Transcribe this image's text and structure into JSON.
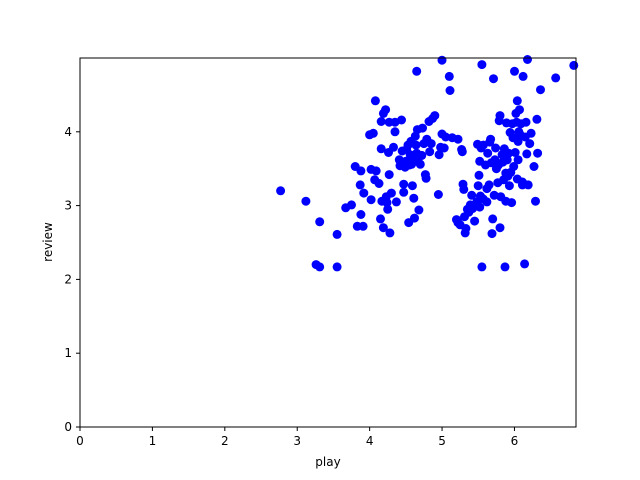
{
  "chart_data": {
    "type": "scatter",
    "title": "",
    "xlabel": "play",
    "ylabel": "review",
    "xlim": [
      0,
      6.85
    ],
    "ylim": [
      0,
      5.0
    ],
    "x_ticks": [
      0,
      1,
      2,
      3,
      4,
      5,
      6
    ],
    "y_ticks": [
      0,
      1,
      2,
      3,
      4
    ],
    "grid": false,
    "marker_color": "#0000ff",
    "points": [
      [
        2.77,
        3.2
      ],
      [
        3.12,
        3.06
      ],
      [
        3.26,
        2.2
      ],
      [
        3.31,
        2.17
      ],
      [
        3.31,
        2.78
      ],
      [
        3.55,
        2.61
      ],
      [
        3.55,
        2.17
      ],
      [
        3.67,
        2.97
      ],
      [
        3.75,
        3.01
      ],
      [
        3.8,
        3.53
      ],
      [
        3.83,
        2.72
      ],
      [
        3.87,
        3.28
      ],
      [
        3.88,
        3.47
      ],
      [
        3.88,
        2.88
      ],
      [
        3.91,
        2.72
      ],
      [
        3.92,
        3.17
      ],
      [
        4.0,
        3.96
      ],
      [
        4.02,
        3.49
      ],
      [
        4.02,
        3.08
      ],
      [
        4.05,
        3.98
      ],
      [
        4.07,
        3.35
      ],
      [
        4.08,
        4.42
      ],
      [
        4.09,
        3.47
      ],
      [
        4.13,
        3.3
      ],
      [
        4.15,
        2.82
      ],
      [
        4.16,
        4.14
      ],
      [
        4.16,
        3.77
      ],
      [
        4.17,
        3.06
      ],
      [
        4.19,
        4.25
      ],
      [
        4.19,
        2.7
      ],
      [
        4.22,
        4.3
      ],
      [
        4.23,
        3.12
      ],
      [
        4.24,
        3.04
      ],
      [
        4.25,
        2.95
      ],
      [
        4.26,
        3.72
      ],
      [
        4.27,
        3.42
      ],
      [
        4.27,
        4.13
      ],
      [
        4.28,
        2.63
      ],
      [
        4.3,
        3.17
      ],
      [
        4.33,
        3.79
      ],
      [
        4.35,
        4.13
      ],
      [
        4.35,
        4.0
      ],
      [
        4.37,
        3.05
      ],
      [
        4.41,
        3.62
      ],
      [
        4.42,
        3.54
      ],
      [
        4.44,
        4.16
      ],
      [
        4.45,
        3.74
      ],
      [
        4.45,
        3.59
      ],
      [
        4.47,
        3.29
      ],
      [
        4.47,
        3.18
      ],
      [
        4.49,
        3.52
      ],
      [
        4.5,
        3.6
      ],
      [
        4.51,
        3.76
      ],
      [
        4.53,
        3.82
      ],
      [
        4.54,
        2.77
      ],
      [
        4.55,
        3.55
      ],
      [
        4.56,
        3.69
      ],
      [
        4.57,
        3.87
      ],
      [
        4.58,
        3.56
      ],
      [
        4.59,
        3.27
      ],
      [
        4.6,
        3.63
      ],
      [
        4.61,
        3.1
      ],
      [
        4.62,
        3.6
      ],
      [
        4.62,
        2.83
      ],
      [
        4.63,
        3.94
      ],
      [
        4.64,
        3.82
      ],
      [
        4.65,
        3.71
      ],
      [
        4.65,
        4.82
      ],
      [
        4.66,
        4.03
      ],
      [
        4.67,
        3.61
      ],
      [
        4.68,
        2.94
      ],
      [
        4.7,
        3.56
      ],
      [
        4.72,
        3.68
      ],
      [
        4.73,
        4.05
      ],
      [
        4.75,
        3.84
      ],
      [
        4.77,
        3.42
      ],
      [
        4.78,
        3.37
      ],
      [
        4.79,
        3.9
      ],
      [
        4.82,
        4.14
      ],
      [
        4.83,
        3.73
      ],
      [
        4.85,
        3.84
      ],
      [
        4.87,
        4.18
      ],
      [
        4.9,
        4.22
      ],
      [
        4.95,
        3.15
      ],
      [
        4.96,
        3.69
      ],
      [
        4.98,
        3.79
      ],
      [
        5.0,
        3.97
      ],
      [
        5.0,
        4.97
      ],
      [
        5.03,
        3.78
      ],
      [
        5.05,
        3.93
      ],
      [
        5.1,
        4.75
      ],
      [
        5.11,
        4.56
      ],
      [
        5.14,
        3.92
      ],
      [
        5.2,
        2.81
      ],
      [
        5.22,
        2.77
      ],
      [
        5.22,
        3.9
      ],
      [
        5.25,
        2.74
      ],
      [
        5.27,
        3.76
      ],
      [
        5.28,
        3.73
      ],
      [
        5.29,
        3.29
      ],
      [
        5.3,
        3.22
      ],
      [
        5.31,
        2.85
      ],
      [
        5.32,
        2.63
      ],
      [
        5.33,
        2.69
      ],
      [
        5.35,
        2.95
      ],
      [
        5.37,
        2.91
      ],
      [
        5.39,
        3.01
      ],
      [
        5.41,
        3.14
      ],
      [
        5.42,
        2.96
      ],
      [
        5.45,
        2.79
      ],
      [
        5.48,
        3.05
      ],
      [
        5.49,
        3.83
      ],
      [
        5.5,
        3.27
      ],
      [
        5.51,
        3.41
      ],
      [
        5.52,
        3.6
      ],
      [
        5.52,
        2.98
      ],
      [
        5.53,
        3.13
      ],
      [
        5.54,
        3.78
      ],
      [
        5.55,
        4.91
      ],
      [
        5.55,
        2.17
      ],
      [
        5.57,
        3.82
      ],
      [
        5.57,
        3.09
      ],
      [
        5.6,
        3.55
      ],
      [
        5.62,
        3.23
      ],
      [
        5.62,
        3.05
      ],
      [
        5.63,
        3.71
      ],
      [
        5.65,
        3.28
      ],
      [
        5.66,
        3.86
      ],
      [
        5.67,
        3.9
      ],
      [
        5.68,
        3.58
      ],
      [
        5.69,
        2.62
      ],
      [
        5.7,
        2.82
      ],
      [
        5.71,
        4.72
      ],
      [
        5.72,
        3.14
      ],
      [
        5.73,
        3.62
      ],
      [
        5.74,
        3.78
      ],
      [
        5.75,
        3.5
      ],
      [
        5.77,
        3.31
      ],
      [
        5.78,
        3.55
      ],
      [
        5.79,
        4.15
      ],
      [
        5.8,
        2.7
      ],
      [
        5.8,
        4.22
      ],
      [
        5.81,
        3.12
      ],
      [
        5.83,
        3.69
      ],
      [
        5.84,
        3.59
      ],
      [
        5.85,
        3.35
      ],
      [
        5.86,
        3.77
      ],
      [
        5.87,
        2.17
      ],
      [
        5.88,
        3.44
      ],
      [
        5.88,
        3.06
      ],
      [
        5.89,
        4.12
      ],
      [
        5.9,
        3.62
      ],
      [
        5.91,
        3.4
      ],
      [
        5.92,
        3.71
      ],
      [
        5.93,
        3.27
      ],
      [
        5.94,
        3.99
      ],
      [
        5.95,
        3.45
      ],
      [
        5.96,
        3.04
      ],
      [
        5.97,
        4.11
      ],
      [
        5.98,
        3.92
      ],
      [
        5.99,
        3.53
      ],
      [
        6.0,
        4.82
      ],
      [
        6.01,
        3.72
      ],
      [
        6.02,
        4.25
      ],
      [
        6.03,
        4.13
      ],
      [
        6.04,
        4.42
      ],
      [
        6.04,
        3.36
      ],
      [
        6.05,
        3.87
      ],
      [
        6.05,
        3.62
      ],
      [
        6.06,
        4.0
      ],
      [
        6.07,
        4.3
      ],
      [
        6.08,
        3.96
      ],
      [
        6.09,
        4.11
      ],
      [
        6.11,
        3.32
      ],
      [
        6.11,
        3.28
      ],
      [
        6.12,
        4.75
      ],
      [
        6.14,
        2.21
      ],
      [
        6.15,
        3.93
      ],
      [
        6.16,
        4.13
      ],
      [
        6.17,
        3.7
      ],
      [
        6.18,
        4.98
      ],
      [
        6.19,
        3.28
      ],
      [
        6.21,
        3.84
      ],
      [
        6.23,
        3.98
      ],
      [
        6.27,
        3.53
      ],
      [
        6.29,
        3.06
      ],
      [
        6.31,
        4.17
      ],
      [
        6.32,
        3.71
      ],
      [
        6.36,
        4.57
      ],
      [
        6.57,
        4.73
      ],
      [
        6.82,
        4.9
      ]
    ]
  }
}
